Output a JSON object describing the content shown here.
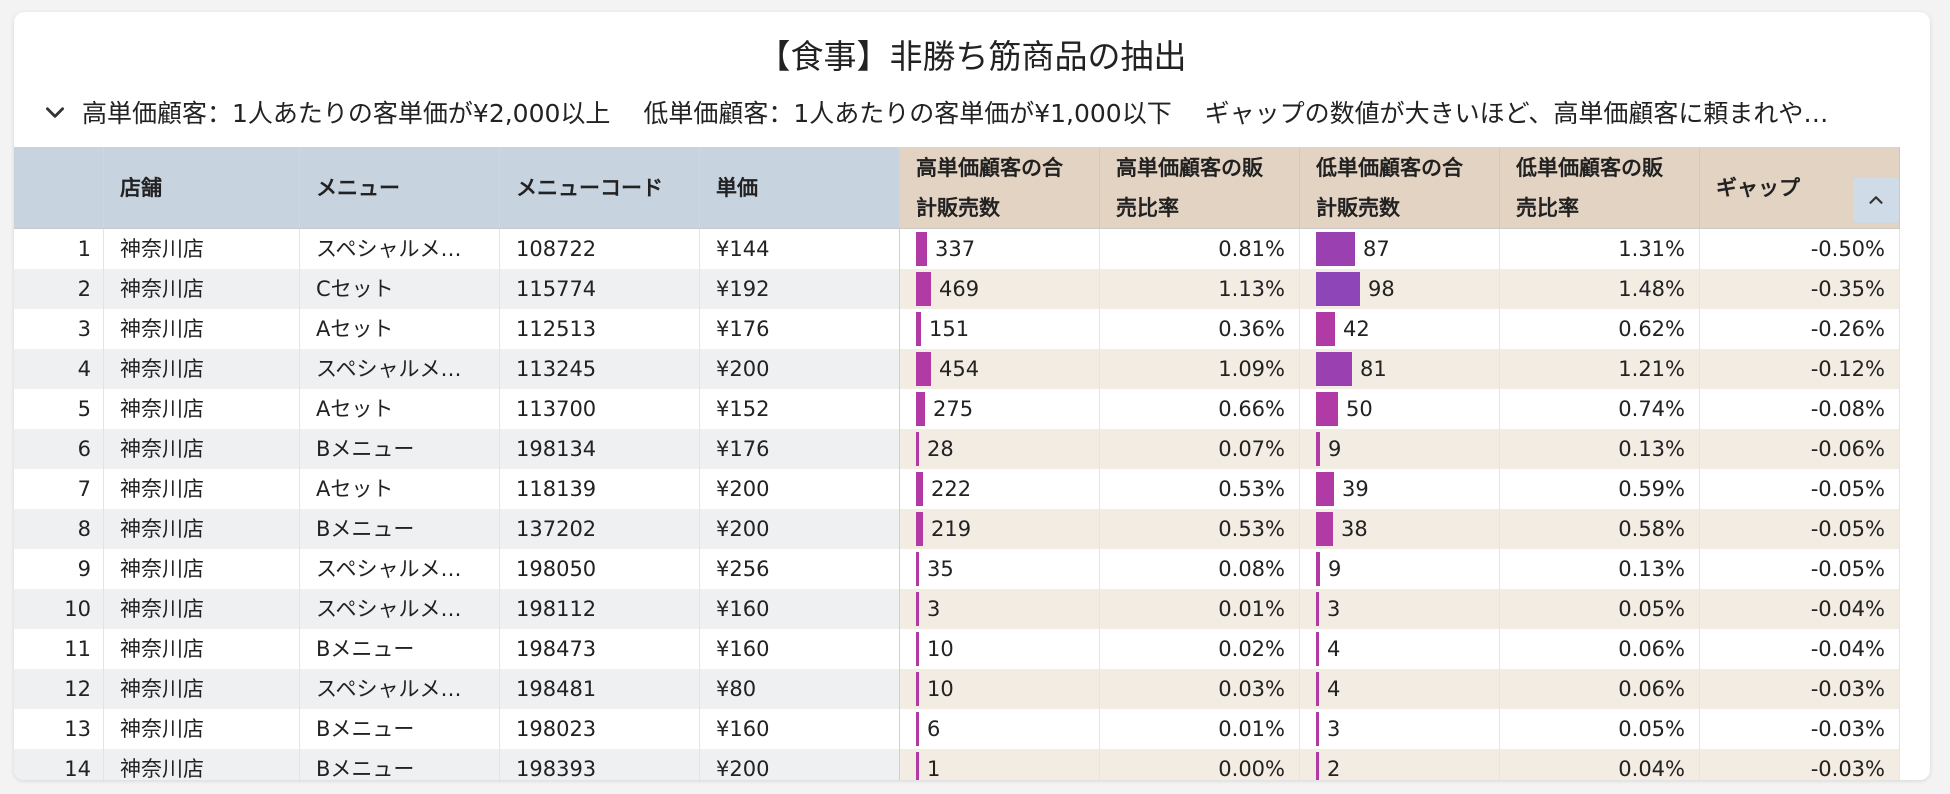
{
  "title": "【食事】非勝ち筋商品の抽出",
  "description": "高単価顧客：1人あたりの客単価が¥2,000以上　 低単価顧客：1人あたりの客単価が¥1,000以下　 ギャップの数値が大きいほど、高単価顧客に頼まれや…",
  "colors": {
    "header_group1": "#c8d3e0",
    "header_group2": "#e3d3c2",
    "row_stripe_left": "#eef0f2",
    "row_stripe_right": "#f3ece3",
    "bar_high": "#b23aa5",
    "bar_low": "#8e45b7"
  },
  "columns": [
    {
      "key": "no",
      "label": ""
    },
    {
      "key": "store",
      "label": "店舗"
    },
    {
      "key": "menu",
      "label": "メニュー"
    },
    {
      "key": "code",
      "label": "メニューコード"
    },
    {
      "key": "price",
      "label": "単価"
    },
    {
      "key": "high_qty",
      "label": "高単価顧客の合計販売数"
    },
    {
      "key": "high_ratio",
      "label": "高単価顧客の販売比率"
    },
    {
      "key": "low_qty",
      "label": "低単価顧客の合計販売数"
    },
    {
      "key": "low_ratio",
      "label": "低単価顧客の販売比率"
    },
    {
      "key": "gap",
      "label": "ギャップ"
    }
  ],
  "sort_icon": "chevron-up-icon",
  "rows": [
    {
      "no": "1",
      "store": "神奈川店",
      "menu": "スペシャルメ…",
      "code": "108722",
      "price": "¥144",
      "high_qty": "337",
      "high_ratio": "0.81%",
      "low_qty": "87",
      "low_ratio": "1.31%",
      "gap": "-0.50%"
    },
    {
      "no": "2",
      "store": "神奈川店",
      "menu": "Cセット",
      "code": "115774",
      "price": "¥192",
      "high_qty": "469",
      "high_ratio": "1.13%",
      "low_qty": "98",
      "low_ratio": "1.48%",
      "gap": "-0.35%"
    },
    {
      "no": "3",
      "store": "神奈川店",
      "menu": "Aセット",
      "code": "112513",
      "price": "¥176",
      "high_qty": "151",
      "high_ratio": "0.36%",
      "low_qty": "42",
      "low_ratio": "0.62%",
      "gap": "-0.26%"
    },
    {
      "no": "4",
      "store": "神奈川店",
      "menu": "スペシャルメ…",
      "code": "113245",
      "price": "¥200",
      "high_qty": "454",
      "high_ratio": "1.09%",
      "low_qty": "81",
      "low_ratio": "1.21%",
      "gap": "-0.12%"
    },
    {
      "no": "5",
      "store": "神奈川店",
      "menu": "Aセット",
      "code": "113700",
      "price": "¥152",
      "high_qty": "275",
      "high_ratio": "0.66%",
      "low_qty": "50",
      "low_ratio": "0.74%",
      "gap": "-0.08%"
    },
    {
      "no": "6",
      "store": "神奈川店",
      "menu": "Bメニュー",
      "code": "198134",
      "price": "¥176",
      "high_qty": "28",
      "high_ratio": "0.07%",
      "low_qty": "9",
      "low_ratio": "0.13%",
      "gap": "-0.06%"
    },
    {
      "no": "7",
      "store": "神奈川店",
      "menu": "Aセット",
      "code": "118139",
      "price": "¥200",
      "high_qty": "222",
      "high_ratio": "0.53%",
      "low_qty": "39",
      "low_ratio": "0.59%",
      "gap": "-0.05%"
    },
    {
      "no": "8",
      "store": "神奈川店",
      "menu": "Bメニュー",
      "code": "137202",
      "price": "¥200",
      "high_qty": "219",
      "high_ratio": "0.53%",
      "low_qty": "38",
      "low_ratio": "0.58%",
      "gap": "-0.05%"
    },
    {
      "no": "9",
      "store": "神奈川店",
      "menu": "スペシャルメ…",
      "code": "198050",
      "price": "¥256",
      "high_qty": "35",
      "high_ratio": "0.08%",
      "low_qty": "9",
      "low_ratio": "0.13%",
      "gap": "-0.05%"
    },
    {
      "no": "10",
      "store": "神奈川店",
      "menu": "スペシャルメ…",
      "code": "198112",
      "price": "¥160",
      "high_qty": "3",
      "high_ratio": "0.01%",
      "low_qty": "3",
      "low_ratio": "0.05%",
      "gap": "-0.04%"
    },
    {
      "no": "11",
      "store": "神奈川店",
      "menu": "Bメニュー",
      "code": "198473",
      "price": "¥160",
      "high_qty": "10",
      "high_ratio": "0.02%",
      "low_qty": "4",
      "low_ratio": "0.06%",
      "gap": "-0.04%"
    },
    {
      "no": "12",
      "store": "神奈川店",
      "menu": "スペシャルメ…",
      "code": "198481",
      "price": "¥80",
      "high_qty": "10",
      "high_ratio": "0.03%",
      "low_qty": "4",
      "low_ratio": "0.06%",
      "gap": "-0.03%"
    },
    {
      "no": "13",
      "store": "神奈川店",
      "menu": "Bメニュー",
      "code": "198023",
      "price": "¥160",
      "high_qty": "6",
      "high_ratio": "0.01%",
      "low_qty": "3",
      "low_ratio": "0.05%",
      "gap": "-0.03%"
    },
    {
      "no": "14",
      "store": "神奈川店",
      "menu": "Bメニュー",
      "code": "198393",
      "price": "¥200",
      "high_qty": "1",
      "high_ratio": "0.00%",
      "low_qty": "2",
      "low_ratio": "0.04%",
      "gap": "-0.03%"
    }
  ]
}
